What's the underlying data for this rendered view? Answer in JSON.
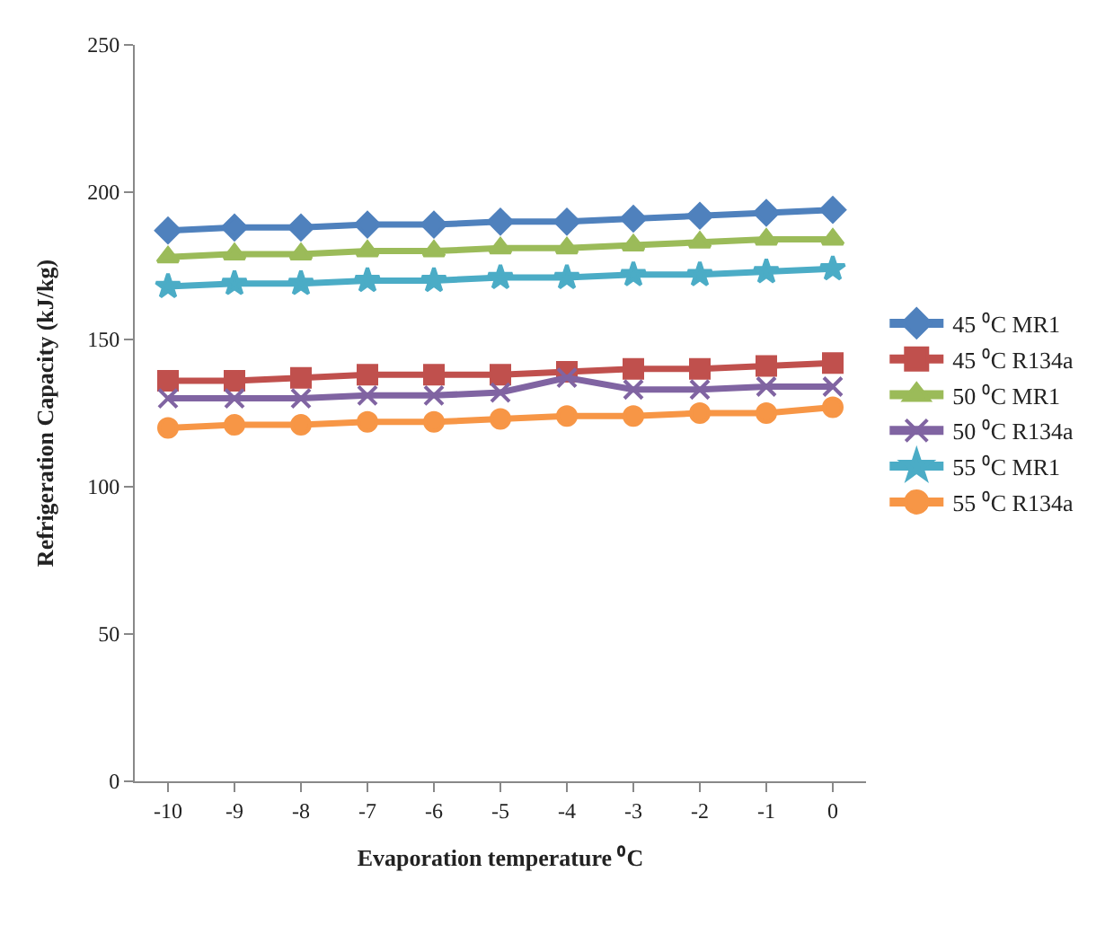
{
  "chart_data": {
    "type": "line",
    "xlabel": "Evaporation temperature ⁰C",
    "ylabel": "Refrigeration Capacity (kJ/kg)",
    "categories": [
      "-10",
      "-9",
      "-8",
      "-7",
      "-6",
      "-5",
      "-4",
      "-3",
      "-2",
      "-1",
      "0"
    ],
    "series": [
      {
        "name": "45 ⁰C MR1",
        "color": "#4f81bd",
        "marker": "diamond",
        "values": [
          187,
          188,
          188,
          189,
          189,
          190,
          190,
          191,
          192,
          193,
          194
        ]
      },
      {
        "name": "45 ⁰C R134a",
        "color": "#c0504d",
        "marker": "square",
        "values": [
          136,
          136,
          137,
          138,
          138,
          138,
          139,
          140,
          140,
          141,
          142
        ]
      },
      {
        "name": "50 ⁰C MR1",
        "color": "#9bbb59",
        "marker": "triangle",
        "values": [
          178,
          179,
          179,
          180,
          180,
          181,
          181,
          182,
          183,
          184,
          184
        ]
      },
      {
        "name": "50 ⁰C R134a",
        "color": "#8064a2",
        "marker": "cross",
        "values": [
          130,
          130,
          130,
          131,
          131,
          132,
          137,
          133,
          133,
          134,
          134
        ]
      },
      {
        "name": "55 ⁰C MR1",
        "color": "#4bacc6",
        "marker": "star",
        "values": [
          168,
          169,
          169,
          170,
          170,
          171,
          171,
          172,
          172,
          173,
          174
        ]
      },
      {
        "name": "55 ⁰C R134a",
        "color": "#f79646",
        "marker": "circle",
        "values": [
          120,
          121,
          121,
          122,
          122,
          123,
          124,
          124,
          125,
          125,
          127
        ]
      }
    ],
    "ylim": [
      0,
      250
    ],
    "yticks": [
      0,
      50,
      100,
      150,
      200,
      250
    ],
    "legend": "right",
    "line_style": "solid"
  }
}
